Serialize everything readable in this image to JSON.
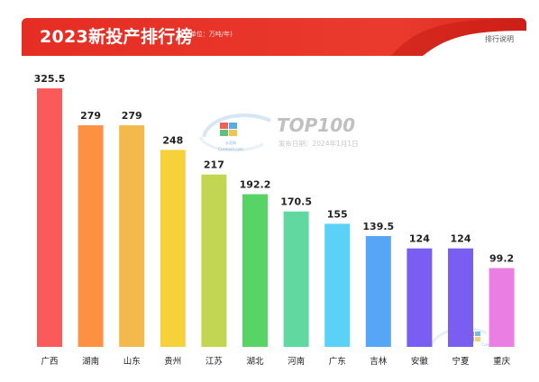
{
  "header": {
    "title": "2023新投产排行榜",
    "unit": "(单位：万吨/年)",
    "link_label": "排行说明"
  },
  "watermark": {
    "brand": "TOP100",
    "date": "发布日期：2024年1月1日",
    "site": "Ccement.com",
    "logo_text": "水泥网"
  },
  "colors": {
    "header_red": "#e6332a",
    "header_dark": "#b8160e"
  },
  "chart_data": {
    "type": "bar",
    "title": "2023新投产排行榜",
    "unit": "万吨/年",
    "categories": [
      "广西",
      "湖南",
      "山东",
      "贵州",
      "江苏",
      "湖北",
      "河南",
      "广东",
      "吉林",
      "安徽",
      "宁夏",
      "重庆"
    ],
    "values": [
      325.5,
      279,
      279,
      248,
      217,
      192.2,
      170.5,
      155,
      139.5,
      124,
      124,
      99.2
    ],
    "value_labels": [
      "325.5",
      "279",
      "279",
      "248",
      "217",
      "192.2",
      "170.5",
      "155",
      "139.5",
      "124",
      "124",
      "99.2"
    ],
    "bar_colors": [
      "#fb5a5a",
      "#fd9041",
      "#f3b94c",
      "#f7d13a",
      "#c3d651",
      "#58d366",
      "#61d8a0",
      "#5ad2f7",
      "#57a5f6",
      "#7a5ef2",
      "#7a5ef2",
      "#ea7ee3"
    ],
    "grid": false,
    "legend": "none"
  }
}
